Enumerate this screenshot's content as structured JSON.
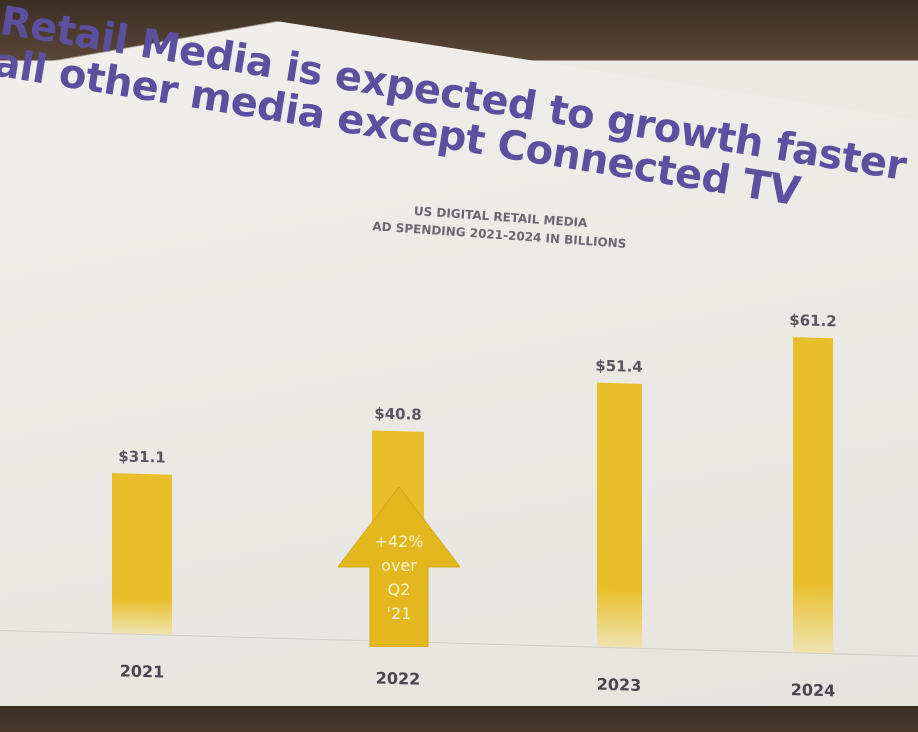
{
  "slide": {
    "title_line1": "Retail Media is expected to growth faster than",
    "title_line2": "all other media except Connected TV"
  },
  "chart_data": {
    "type": "bar",
    "title": "US DIGITAL RETAIL MEDIA",
    "subtitle": "AD SPENDING 2021-2024 IN BILLIONS",
    "categories": [
      "2021",
      "2022",
      "2023",
      "2024"
    ],
    "values": [
      31.1,
      40.8,
      51.4,
      61.2
    ],
    "data_labels": [
      "$31.1",
      "$40.8",
      "$51.4",
      "$61.2"
    ],
    "xlabel": "",
    "ylabel": "",
    "ylim": [
      0,
      70
    ],
    "grid": false,
    "color": "#e8bf2a",
    "annotation": {
      "category": "2022",
      "lines": [
        "+42%",
        "over",
        "Q2",
        "'21"
      ]
    }
  }
}
